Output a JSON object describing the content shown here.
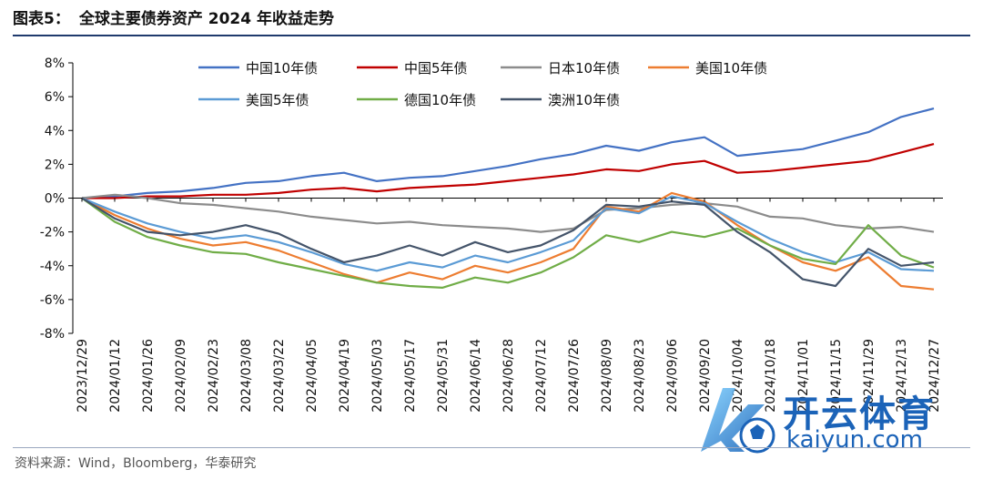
{
  "header": {
    "figure_no": "图表5：",
    "title": "全球主要债券资产 2024 年收益走势"
  },
  "source": "资料来源：Wind，Bloomberg，华泰研究",
  "watermark": {
    "brand_cn": "开云体育",
    "brand_en": "kaiyun.com"
  },
  "colors": {
    "cn10": "#4472C4",
    "cn5": "#C00000",
    "jp10": "#8C8C8C",
    "us10": "#ED7D31",
    "us5": "#5B9BD5",
    "de10": "#70AD47",
    "au10": "#44546A",
    "axis": "#000000",
    "rule": "#1f3a6d"
  },
  "chart_data": {
    "type": "line",
    "title": "全球主要债券资产 2024 年收益走势",
    "xlabel": "",
    "ylabel": "",
    "ylim": [
      -8,
      8
    ],
    "yticks": [
      "8%",
      "6%",
      "4%",
      "2%",
      "0%",
      "-2%",
      "-4%",
      "-6%",
      "-8%"
    ],
    "ytick_values": [
      8,
      6,
      4,
      2,
      0,
      -2,
      -4,
      -6,
      -8
    ],
    "categories": [
      "2023/12/29",
      "2024/01/12",
      "2024/01/26",
      "2024/02/09",
      "2024/02/23",
      "2024/03/08",
      "2024/03/22",
      "2024/04/05",
      "2024/04/19",
      "2024/05/03",
      "2024/05/17",
      "2024/05/31",
      "2024/06/14",
      "2024/06/28",
      "2024/07/12",
      "2024/07/26",
      "2024/08/09",
      "2024/08/23",
      "2024/09/06",
      "2024/09/20",
      "2024/10/04",
      "2024/10/18",
      "2024/11/01",
      "2024/11/15",
      "2024/11/29",
      "2024/12/13",
      "2024/12/27"
    ],
    "legend_position": "top",
    "series": [
      {
        "key": "cn10",
        "name": "中国10年债",
        "values": [
          0,
          0.1,
          0.3,
          0.4,
          0.6,
          0.9,
          1.0,
          1.3,
          1.5,
          1.0,
          1.2,
          1.3,
          1.6,
          1.9,
          2.3,
          2.6,
          3.1,
          2.8,
          3.3,
          3.6,
          2.5,
          2.7,
          2.9,
          3.4,
          3.9,
          4.8,
          5.3
        ]
      },
      {
        "key": "cn5",
        "name": "中国5年债",
        "values": [
          0,
          0,
          0.1,
          0.1,
          0.2,
          0.2,
          0.3,
          0.5,
          0.6,
          0.4,
          0.6,
          0.7,
          0.8,
          1.0,
          1.2,
          1.4,
          1.7,
          1.6,
          2.0,
          2.2,
          1.5,
          1.6,
          1.8,
          2.0,
          2.2,
          2.7,
          3.2
        ]
      },
      {
        "key": "jp10",
        "name": "日本10年债",
        "values": [
          0,
          0.2,
          0,
          -0.3,
          -0.4,
          -0.6,
          -0.8,
          -1.1,
          -1.3,
          -1.5,
          -1.4,
          -1.6,
          -1.7,
          -1.8,
          -2.0,
          -1.8,
          -0.7,
          -0.6,
          -0.4,
          -0.3,
          -0.5,
          -1.1,
          -1.2,
          -1.6,
          -1.8,
          -1.7,
          -2.0
        ]
      },
      {
        "key": "us10",
        "name": "美国10年债",
        "values": [
          0,
          -1.0,
          -1.8,
          -2.4,
          -2.8,
          -2.6,
          -3.1,
          -3.8,
          -4.5,
          -5.0,
          -4.4,
          -4.8,
          -4.0,
          -4.4,
          -3.8,
          -3.0,
          -0.5,
          -0.8,
          0.3,
          -0.2,
          -1.6,
          -2.8,
          -3.8,
          -4.3,
          -3.5,
          -5.2,
          -5.4
        ]
      },
      {
        "key": "us5",
        "name": "美国5年债",
        "values": [
          0,
          -0.8,
          -1.5,
          -2.0,
          -2.4,
          -2.2,
          -2.6,
          -3.2,
          -3.9,
          -4.3,
          -3.8,
          -4.1,
          -3.4,
          -3.8,
          -3.2,
          -2.5,
          -0.6,
          -0.9,
          0.1,
          -0.3,
          -1.4,
          -2.4,
          -3.2,
          -3.8,
          -3.2,
          -4.2,
          -4.3
        ]
      },
      {
        "key": "de10",
        "name": "德国10年债",
        "values": [
          0,
          -1.4,
          -2.3,
          -2.8,
          -3.2,
          -3.3,
          -3.8,
          -4.2,
          -4.6,
          -5.0,
          -5.2,
          -5.3,
          -4.7,
          -5.0,
          -4.4,
          -3.5,
          -2.2,
          -2.6,
          -2.0,
          -2.3,
          -1.8,
          -2.8,
          -3.6,
          -3.9,
          -1.6,
          -3.4,
          -4.1
        ]
      },
      {
        "key": "au10",
        "name": "澳洲10年债",
        "values": [
          0,
          -1.2,
          -2.0,
          -2.2,
          -2.0,
          -1.6,
          -2.1,
          -3.0,
          -3.8,
          -3.4,
          -2.8,
          -3.4,
          -2.6,
          -3.2,
          -2.8,
          -1.9,
          -0.4,
          -0.5,
          -0.2,
          -0.4,
          -2.0,
          -3.2,
          -4.8,
          -5.2,
          -3.0,
          -4.0,
          -3.8
        ]
      }
    ]
  }
}
